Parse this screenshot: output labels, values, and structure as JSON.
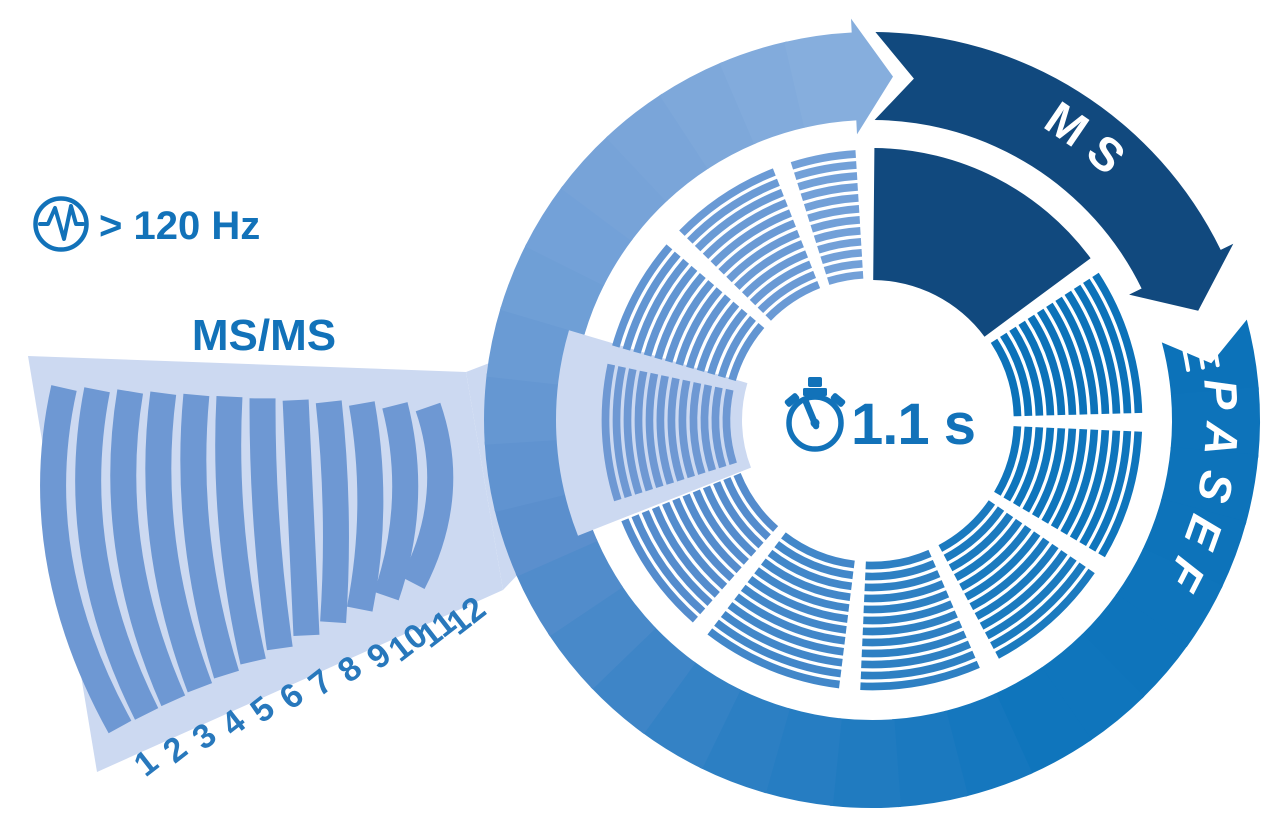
{
  "diagram": {
    "type": "cycle-diagram",
    "subject": "PASEF acquisition cycle",
    "rate_badge": {
      "icon": "pulse",
      "text": "> 120 Hz"
    },
    "cycle_time": {
      "icon": "stopwatch",
      "text": "1.1 s"
    },
    "arcs": {
      "ms_label": "MS",
      "pasef_label": "PASEF"
    },
    "fan": {
      "label": "MS/MS",
      "scan_numbers": [
        "1",
        "2",
        "3",
        "4",
        "5",
        "6",
        "7",
        "8",
        "9",
        "10",
        "11",
        "12"
      ]
    },
    "frames": {
      "ms_frames": 1,
      "pasef_frames": 10,
      "scans_per_frame": 12,
      "highlighted_frame": 7
    },
    "colors": {
      "navy": "#11497e",
      "bright_blue": "#0f74bb",
      "steel_blue": "#6e98d3",
      "light_steel": "#7ca6da",
      "lavender": "#ccd9f1",
      "text_blue": "#1272b9",
      "number_blue": "#2878bc",
      "white": "#ffffff",
      "frame_stripe_colors": [
        "#0c72b9",
        "#0f75bc",
        "#1b7abf",
        "#2e80c3",
        "#4287c9",
        "#548ccd",
        "#6e98d3",
        "#6295d2",
        "#6a9ad5",
        "#72a0d8"
      ],
      "ring_gradient": [
        [
          75,
          "#0c72b9"
        ],
        [
          150,
          "#0f75bc"
        ],
        [
          205,
          "#2e80c4"
        ],
        [
          250,
          "#5a8fcd"
        ],
        [
          295,
          "#71a0d7"
        ],
        [
          330,
          "#7da7da"
        ],
        [
          357,
          "#88afde"
        ]
      ]
    }
  }
}
